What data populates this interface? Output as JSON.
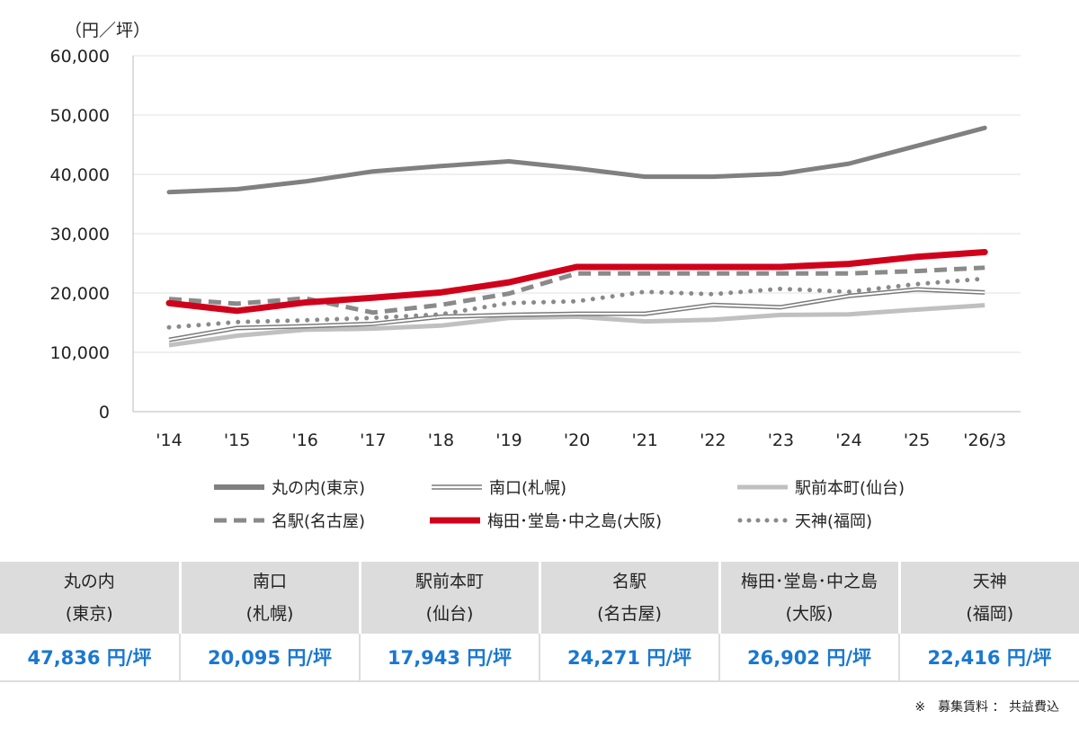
{
  "chart_data": {
    "type": "line",
    "unit_label": "（円／坪）",
    "categories": [
      "'14",
      "'15",
      "'16",
      "'17",
      "'18",
      "'19",
      "'20",
      "'21",
      "'22",
      "'23",
      "'24",
      "'25",
      "'26/3"
    ],
    "ylim": [
      0,
      60000
    ],
    "yticks": [
      "0",
      "10,000",
      "20,000",
      "30,000",
      "40,000",
      "50,000",
      "60,000"
    ],
    "grid": true,
    "legend_placement": "bottom",
    "series": [
      {
        "name": "丸の内(東京)",
        "style": "solid-thick",
        "color": "#808080",
        "values": [
          37000,
          37500,
          38800,
          40500,
          41400,
          42200,
          41000,
          39600,
          39600,
          40100,
          41800,
          44800,
          47836
        ]
      },
      {
        "name": "南口(札幌)",
        "style": "double",
        "color": "#7a7a7a",
        "values": [
          12100,
          14100,
          14400,
          14800,
          16000,
          16300,
          16500,
          16500,
          18000,
          17600,
          19500,
          20600,
          20095
        ]
      },
      {
        "name": "駅前本町(仙台)",
        "style": "solid-light",
        "color": "#c0c0c0",
        "values": [
          11200,
          12800,
          13800,
          14000,
          14500,
          15800,
          16000,
          15200,
          15500,
          16300,
          16400,
          17200,
          17943
        ]
      },
      {
        "name": "名駅(名古屋)",
        "style": "dashed",
        "color": "#8a8a8a",
        "values": [
          19000,
          18200,
          19100,
          16700,
          18000,
          19900,
          23300,
          23300,
          23300,
          23300,
          23300,
          23700,
          24271
        ]
      },
      {
        "name": "梅田･堂島･中之島(大阪)",
        "style": "solid-red",
        "color": "#d0021b",
        "values": [
          18300,
          17000,
          18400,
          19200,
          20100,
          21800,
          24400,
          24400,
          24400,
          24400,
          24900,
          26100,
          26902
        ]
      },
      {
        "name": "天神(福岡)",
        "style": "dotted",
        "color": "#8a8a8a",
        "values": [
          14200,
          15100,
          15400,
          15800,
          16400,
          18300,
          18600,
          20200,
          19800,
          20700,
          20200,
          21500,
          22416
        ]
      }
    ]
  },
  "table": {
    "headers": [
      [
        "丸の内",
        "(東京)"
      ],
      [
        "南口",
        "(札幌)"
      ],
      [
        "駅前本町",
        "(仙台)"
      ],
      [
        "名駅",
        "(名古屋)"
      ],
      [
        "梅田･堂島･中之島",
        "(大阪)"
      ],
      [
        "天神",
        "(福岡)"
      ]
    ],
    "values": [
      "47,836 円/坪",
      "20,095 円/坪",
      "17,943 円/坪",
      "24,271 円/坪",
      "26,902 円/坪",
      "22,416 円/坪"
    ]
  },
  "note": "※　募集賃料 ： 共益費込"
}
